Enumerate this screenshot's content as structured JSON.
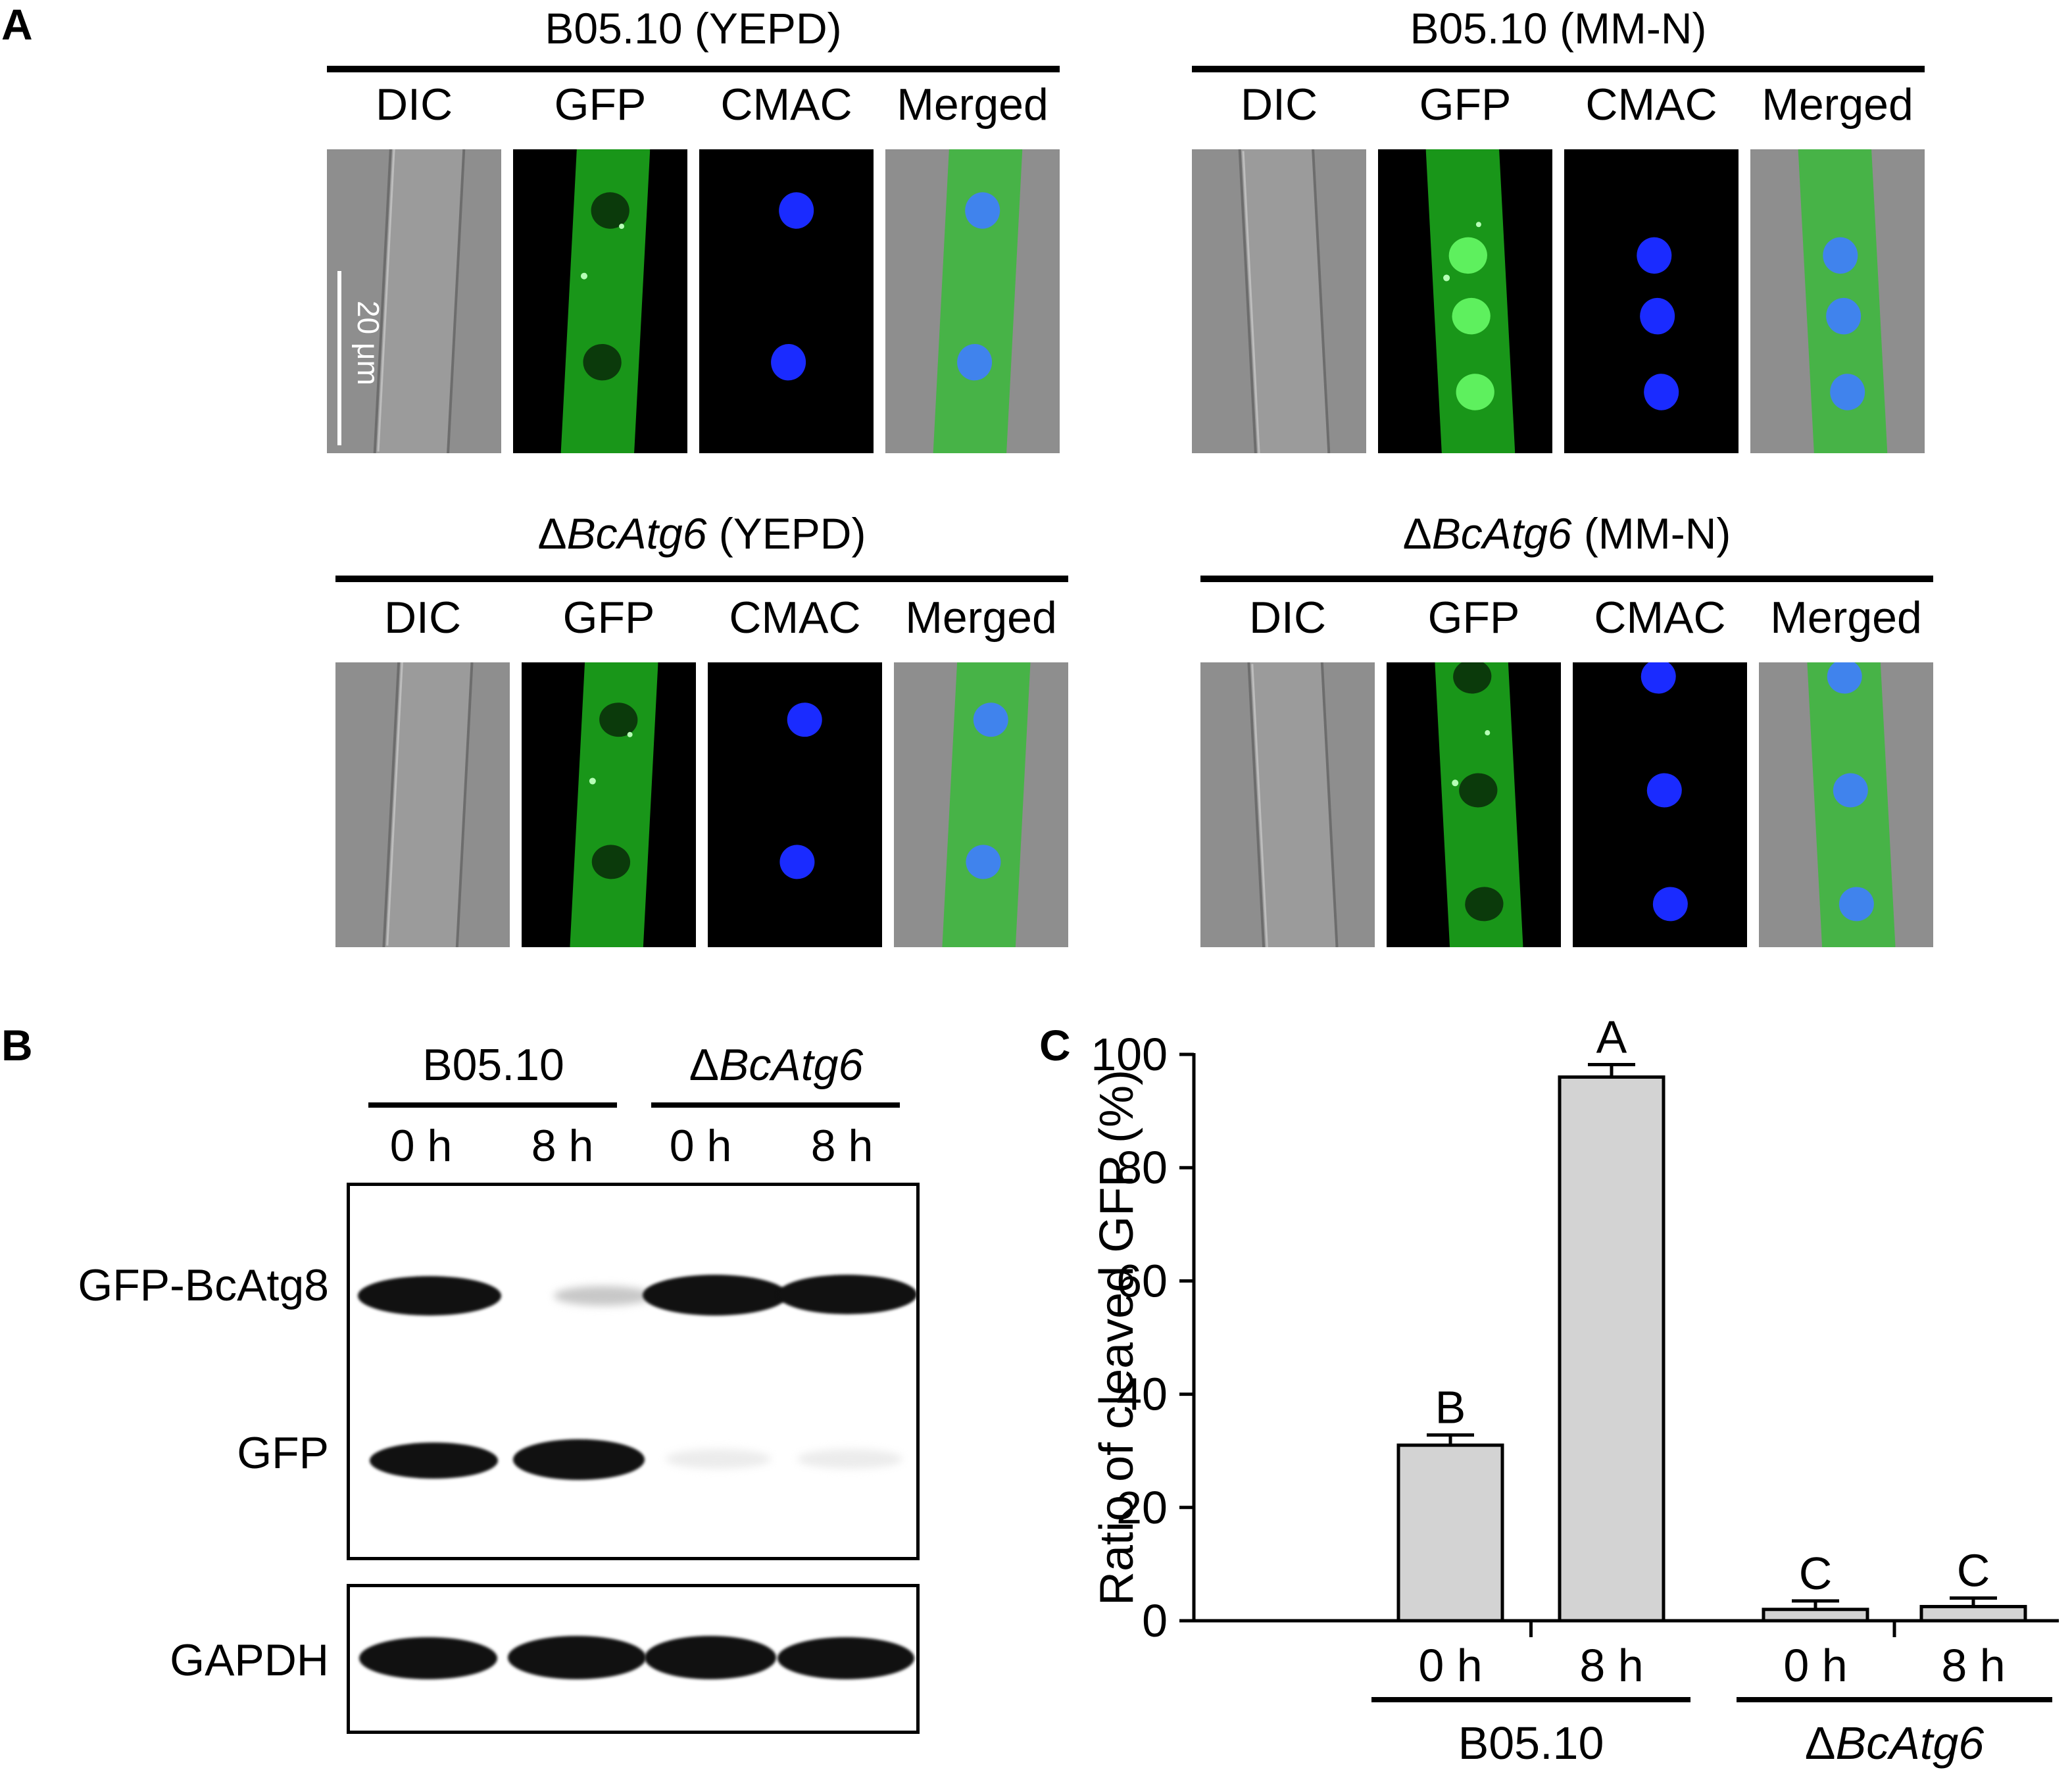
{
  "panels": {
    "a": "A",
    "b": "B",
    "c": "C"
  },
  "conditions": [
    {
      "strain": "B05.10",
      "strain_italic": false,
      "medium": "(YEPD)"
    },
    {
      "strain": "B05.10",
      "strain_italic": false,
      "medium": "(MM-N)"
    },
    {
      "strain": "BcAtg6",
      "delta": "Δ",
      "strain_italic": true,
      "medium": "(YEPD)"
    },
    {
      "strain": "BcAtg6",
      "delta": "Δ",
      "strain_italic": true,
      "medium": "(MM-N)"
    }
  ],
  "channels": [
    "DIC",
    "GFP",
    "CMAC",
    "Merged"
  ],
  "scale_bar": "20 μm",
  "colors": {
    "gfp": "#22c822",
    "cmac": "#1a2bff",
    "dic": "#8a8a8a",
    "bar_fill": "#d3d3d3"
  },
  "blot": {
    "strains": [
      {
        "name": "B05.10",
        "italic": false
      },
      {
        "delta": "Δ",
        "name": "BcAtg6",
        "italic": true
      }
    ],
    "lanes": [
      "0 h",
      "8 h",
      "0 h",
      "8 h"
    ],
    "rows": [
      "GFP-BcAtg8",
      "GFP",
      "GAPDH"
    ]
  },
  "chart_data": {
    "type": "bar",
    "ylabel": "Ratio of cleaved GFP (%)",
    "ylim": [
      0,
      100
    ],
    "yticks": [
      0,
      20,
      40,
      60,
      80,
      100
    ],
    "groups": [
      {
        "name": "B05.10",
        "italic": false,
        "delta": ""
      },
      {
        "name": "BcAtg6",
        "italic": true,
        "delta": "Δ"
      }
    ],
    "categories": [
      "0 h",
      "8 h",
      "0 h",
      "8 h"
    ],
    "values": [
      31,
      96,
      2,
      2.5
    ],
    "errors": [
      1.8,
      2.2,
      1.5,
      1.5
    ],
    "letters": [
      "B",
      "A",
      "C",
      "C"
    ]
  }
}
